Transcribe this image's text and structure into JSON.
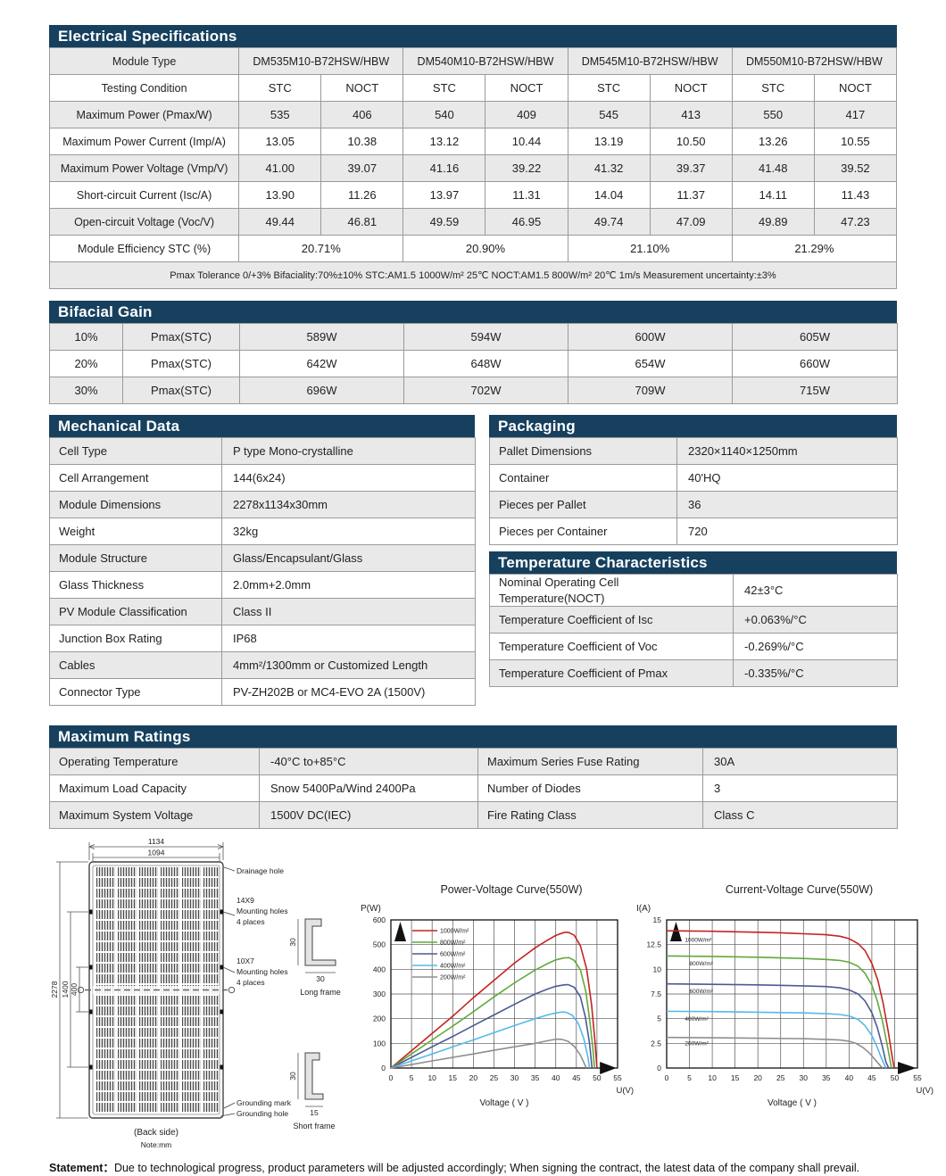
{
  "electrical": {
    "title": "Electrical Specifications",
    "module_type_label": "Module Type",
    "modules": [
      "DM535M10-B72HSW/HBW",
      "DM540M10-B72HSW/HBW",
      "DM545M10-B72HSW/HBW",
      "DM550M10-B72HSW/HBW"
    ],
    "testing_condition_label": "Testing Condition",
    "conditions": [
      "STC",
      "NOCT",
      "STC",
      "NOCT",
      "STC",
      "NOCT",
      "STC",
      "NOCT"
    ],
    "rows": [
      {
        "label": "Maximum Power (Pmax/W)",
        "values": [
          "535",
          "406",
          "540",
          "409",
          "545",
          "413",
          "550",
          "417"
        ]
      },
      {
        "label": "Maximum Power Current (Imp/A)",
        "values": [
          "13.05",
          "10.38",
          "13.12",
          "10.44",
          "13.19",
          "10.50",
          "13.26",
          "10.55"
        ]
      },
      {
        "label": "Maximum Power Voltage (Vmp/V)",
        "values": [
          "41.00",
          "39.07",
          "41.16",
          "39.22",
          "41.32",
          "39.37",
          "41.48",
          "39.52"
        ]
      },
      {
        "label": "Short-circuit Current (Isc/A)",
        "values": [
          "13.90",
          "11.26",
          "13.97",
          "11.31",
          "14.04",
          "11.37",
          "14.11",
          "11.43"
        ]
      },
      {
        "label": "Open-circuit Voltage (Voc/V)",
        "values": [
          "49.44",
          "46.81",
          "49.59",
          "46.95",
          "49.74",
          "47.09",
          "49.89",
          "47.23"
        ]
      }
    ],
    "efficiency": {
      "label": "Module Efficiency STC (%)",
      "values": [
        "20.71%",
        "20.90%",
        "21.10%",
        "21.29%"
      ]
    },
    "footnote_parts": [
      "Pmax Tolerance 0/+3%",
      "Bifaciality:70%±10%",
      "STC:AM1.5 1000W/m² 25℃",
      "NOCT:AM1.5 800W/m² 20℃ 1m/s Measurement uncertainty:±3%"
    ]
  },
  "bifacial": {
    "title": "Bifacial Gain",
    "rows": [
      {
        "gain": "10%",
        "label": "Pmax(STC)",
        "values": [
          "589W",
          "594W",
          "600W",
          "605W"
        ]
      },
      {
        "gain": "20%",
        "label": "Pmax(STC)",
        "values": [
          "642W",
          "648W",
          "654W",
          "660W"
        ]
      },
      {
        "gain": "30%",
        "label": "Pmax(STC)",
        "values": [
          "696W",
          "702W",
          "709W",
          "715W"
        ]
      }
    ]
  },
  "mechanical": {
    "title": "Mechanical Data",
    "rows": [
      [
        "Cell Type",
        "P type Mono-crystalline"
      ],
      [
        "Cell Arrangement",
        "144(6x24)"
      ],
      [
        "Module Dimensions",
        "2278x1134x30mm"
      ],
      [
        "Weight",
        "32kg"
      ],
      [
        "Module Structure",
        "Glass/Encapsulant/Glass"
      ],
      [
        "Glass Thickness",
        "2.0mm+2.0mm"
      ],
      [
        "PV Module Classification",
        "Class II"
      ],
      [
        "Junction Box Rating",
        "IP68"
      ],
      [
        "Cables",
        "4mm²/1300mm or Customized Length"
      ],
      [
        "Connector Type",
        "PV-ZH202B or MC4-EVO 2A (1500V)"
      ]
    ]
  },
  "packaging": {
    "title": "Packaging",
    "rows": [
      [
        "Pallet Dimensions",
        "2320×1140×1250mm"
      ],
      [
        "Container",
        "40'HQ"
      ],
      [
        "Pieces per Pallet",
        "36"
      ],
      [
        "Pieces per Container",
        "720"
      ]
    ]
  },
  "temperature": {
    "title": "Temperature Characteristics",
    "rows": [
      {
        "label": [
          "Nominal Operating Cell",
          "Temperature(NOCT)"
        ],
        "value": "42±3°C",
        "tall": true
      },
      {
        "label": "Temperature Coefficient of Isc",
        "value": "+0.063%/°C"
      },
      {
        "label": "Temperature Coefficient of Voc",
        "value": "-0.269%/°C"
      },
      {
        "label": "Temperature Coefficient of Pmax",
        "value": "-0.335%/°C"
      }
    ]
  },
  "maximum_ratings": {
    "title": "Maximum Ratings",
    "rows": [
      [
        "Operating Temperature",
        "-40°C to+85°C",
        "Maximum Series Fuse Rating",
        "30A"
      ],
      [
        "Maximum Load Capacity",
        "Snow 5400Pa/Wind 2400Pa",
        "Number of Diodes",
        "3"
      ],
      [
        "Maximum System Voltage",
        "1500V DC(IEC)",
        "Fire Rating Class",
        "Class C"
      ]
    ]
  },
  "diagram": {
    "dim_outer_width": "1134",
    "dim_inner_width": "1094",
    "dim_full_height": "2278",
    "dim_mount_span": "1400",
    "dim_center_span": "400",
    "callout_drainage": "Drainage hole",
    "callout_mount1": [
      "14X9",
      "Mounting holes",
      "4 places"
    ],
    "callout_mount2": [
      "10X7",
      "Mounting holes",
      "4 places"
    ],
    "callout_grounding_mark": "Grounding mark",
    "callout_grounding_hole": "Grounding hole",
    "back_side": "(Back side)",
    "note": "Note:mm",
    "long_frame": {
      "label": "Long frame",
      "height": "30",
      "width": "30"
    },
    "short_frame": {
      "label": "Short frame",
      "height": "30",
      "width": "15"
    }
  },
  "chart_data": [
    {
      "type": "line",
      "title": "Power-Voltage  Curve(550W)",
      "ylabel": "P(W)",
      "xlabel": "Voltage ( V )",
      "x_unit": "U(V)",
      "xlim": [
        0,
        55
      ],
      "ylim": [
        0,
        600
      ],
      "xtick_step": 5,
      "ytick_step": 100,
      "grid": true,
      "legend_position": "top-left",
      "series": [
        {
          "name": "1000W/m²",
          "color": "#c42420",
          "points": [
            [
              0,
              0
            ],
            [
              5,
              70
            ],
            [
              10,
              140
            ],
            [
              15,
              210
            ],
            [
              20,
              285
            ],
            [
              25,
              355
            ],
            [
              30,
              425
            ],
            [
              35,
              487
            ],
            [
              38,
              518
            ],
            [
              40,
              537
            ],
            [
              42,
              549
            ],
            [
              43,
              550
            ],
            [
              44.5,
              538
            ],
            [
              46,
              495
            ],
            [
              47.5,
              400
            ],
            [
              48.7,
              255
            ],
            [
              49.5,
              110
            ],
            [
              50,
              0
            ]
          ]
        },
        {
          "name": "800W/m²",
          "color": "#61a93c",
          "points": [
            [
              0,
              0
            ],
            [
              5,
              57
            ],
            [
              10,
              114
            ],
            [
              15,
              170
            ],
            [
              20,
              228
            ],
            [
              25,
              288
            ],
            [
              30,
              345
            ],
            [
              35,
              397
            ],
            [
              38,
              423
            ],
            [
              40,
              438
            ],
            [
              42,
              446
            ],
            [
              43.2,
              447
            ],
            [
              44.5,
              436
            ],
            [
              46,
              398
            ],
            [
              47.3,
              310
            ],
            [
              48.3,
              185
            ],
            [
              49,
              80
            ],
            [
              49.4,
              0
            ]
          ]
        },
        {
          "name": "600W/m²",
          "color": "#4a5a94",
          "points": [
            [
              0,
              0
            ],
            [
              5,
              43
            ],
            [
              10,
              86
            ],
            [
              15,
              128
            ],
            [
              20,
              172
            ],
            [
              25,
              215
            ],
            [
              30,
              258
            ],
            [
              35,
              300
            ],
            [
              38,
              320
            ],
            [
              40,
              331
            ],
            [
              42,
              337
            ],
            [
              43,
              338
            ],
            [
              44.5,
              327
            ],
            [
              46,
              288
            ],
            [
              47.2,
              205
            ],
            [
              48.2,
              100
            ],
            [
              48.8,
              0
            ]
          ]
        },
        {
          "name": "400W/m²",
          "color": "#55b9e9",
          "points": [
            [
              0,
              0
            ],
            [
              5,
              29
            ],
            [
              10,
              57
            ],
            [
              15,
              86
            ],
            [
              20,
              114
            ],
            [
              25,
              143
            ],
            [
              30,
              172
            ],
            [
              35,
              200
            ],
            [
              38,
              215
            ],
            [
              40,
              223
            ],
            [
              41.5,
              227
            ],
            [
              42.5,
              226
            ],
            [
              44,
              214
            ],
            [
              45.5,
              180
            ],
            [
              46.8,
              120
            ],
            [
              47.8,
              45
            ],
            [
              48.2,
              0
            ]
          ]
        },
        {
          "name": "200W/m²",
          "color": "#8f8f8f",
          "points": [
            [
              0,
              0
            ],
            [
              5,
              14
            ],
            [
              10,
              29
            ],
            [
              15,
              43
            ],
            [
              20,
              57
            ],
            [
              25,
              72
            ],
            [
              30,
              86
            ],
            [
              35,
              100
            ],
            [
              37,
              107
            ],
            [
              39,
              114
            ],
            [
              40.5,
              117
            ],
            [
              41.5,
              116
            ],
            [
              43,
              108
            ],
            [
              44.5,
              88
            ],
            [
              46,
              52
            ],
            [
              47,
              15
            ],
            [
              47.4,
              0
            ]
          ]
        }
      ]
    },
    {
      "type": "line",
      "title": "Current-Voltage  Curve(550W)",
      "ylabel": "I(A)",
      "xlabel": "Voltage ( V )",
      "x_unit": "U(V)",
      "xlim": [
        0,
        55
      ],
      "ylim": [
        0,
        15
      ],
      "xtick_step": 5,
      "ytick_step": 2.5,
      "grid": true,
      "legend_position": "inline",
      "series": [
        {
          "name": "1000W/m²",
          "color": "#c42420",
          "label_pos": [
            4,
            12.8
          ],
          "points": [
            [
              0,
              13.9
            ],
            [
              5,
              13.88
            ],
            [
              10,
              13.85
            ],
            [
              15,
              13.8
            ],
            [
              20,
              13.75
            ],
            [
              25,
              13.7
            ],
            [
              30,
              13.6
            ],
            [
              35,
              13.5
            ],
            [
              38,
              13.35
            ],
            [
              40,
              13.1
            ],
            [
              42,
              12.6
            ],
            [
              43.5,
              11.9
            ],
            [
              45,
              10.6
            ],
            [
              46.3,
              8.9
            ],
            [
              47.5,
              6.5
            ],
            [
              48.6,
              3.7
            ],
            [
              49.4,
              1.3
            ],
            [
              49.9,
              0
            ]
          ]
        },
        {
          "name": "800W/m²",
          "color": "#61a93c",
          "label_pos": [
            5,
            10.4
          ],
          "points": [
            [
              0,
              11.35
            ],
            [
              10,
              11.3
            ],
            [
              20,
              11.22
            ],
            [
              30,
              11.1
            ],
            [
              35,
              11.0
            ],
            [
              38,
              10.9
            ],
            [
              40,
              10.72
            ],
            [
              42,
              10.3
            ],
            [
              43.5,
              9.6
            ],
            [
              45,
              8.4
            ],
            [
              46.2,
              6.8
            ],
            [
              47.3,
              4.8
            ],
            [
              48.3,
              2.5
            ],
            [
              49.1,
              0.5
            ],
            [
              49.3,
              0
            ]
          ]
        },
        {
          "name": "600W/m²",
          "color": "#4a5a94",
          "label_pos": [
            5,
            7.6
          ],
          "points": [
            [
              0,
              8.52
            ],
            [
              10,
              8.48
            ],
            [
              20,
              8.42
            ],
            [
              30,
              8.32
            ],
            [
              35,
              8.25
            ],
            [
              38,
              8.12
            ],
            [
              40,
              7.92
            ],
            [
              42,
              7.5
            ],
            [
              43.5,
              6.8
            ],
            [
              45,
              5.6
            ],
            [
              46.2,
              4.1
            ],
            [
              47.2,
              2.4
            ],
            [
              48.1,
              0.6
            ],
            [
              48.7,
              0
            ]
          ]
        },
        {
          "name": "400W/m²",
          "color": "#55b9e9",
          "label_pos": [
            4,
            4.8
          ],
          "points": [
            [
              0,
              5.75
            ],
            [
              10,
              5.72
            ],
            [
              20,
              5.66
            ],
            [
              30,
              5.58
            ],
            [
              35,
              5.5
            ],
            [
              38,
              5.42
            ],
            [
              40,
              5.28
            ],
            [
              42,
              4.92
            ],
            [
              43.5,
              4.3
            ],
            [
              45,
              3.3
            ],
            [
              46.2,
              2.1
            ],
            [
              47.2,
              0.9
            ],
            [
              48.1,
              0
            ]
          ]
        },
        {
          "name": "200W/m²",
          "color": "#8f8f8f",
          "label_pos": [
            4,
            2.3
          ],
          "points": [
            [
              0,
              3.1
            ],
            [
              10,
              3.06
            ],
            [
              20,
              3.02
            ],
            [
              30,
              2.97
            ],
            [
              35,
              2.9
            ],
            [
              38,
              2.84
            ],
            [
              40,
              2.72
            ],
            [
              41.5,
              2.5
            ],
            [
              43,
              2.1
            ],
            [
              44.5,
              1.5
            ],
            [
              46,
              0.7
            ],
            [
              47,
              0.15
            ],
            [
              47.4,
              0
            ]
          ]
        }
      ]
    }
  ],
  "statement": {
    "label": "Statement：",
    "text": "Due to technological progress, product parameters will be adjusted accordingly; When signing the contract, the latest data of the company shall prevail."
  },
  "colors": {
    "header_bar": "#16405e",
    "row_stripe": "#e9e9ea",
    "border": "#9a9a9a"
  }
}
